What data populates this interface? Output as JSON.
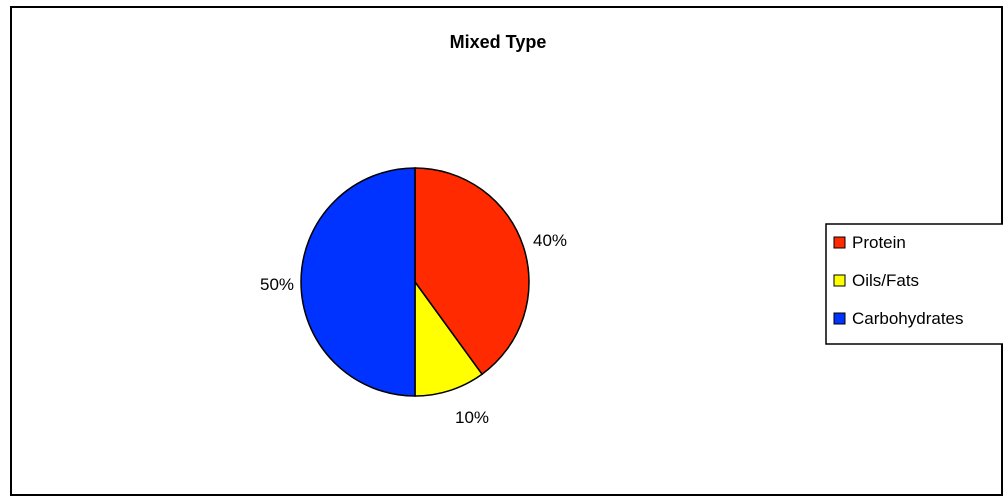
{
  "chart_data": {
    "type": "pie",
    "title": "Mixed Type",
    "categories": [
      "Protein",
      "Oils/Fats",
      "Carbohydrates"
    ],
    "values": [
      40,
      10,
      50
    ],
    "labels": [
      "40%",
      "10%",
      "50%"
    ],
    "colors": [
      "#ff2a00",
      "#ffff00",
      "#0033ff"
    ],
    "legend_position": "right"
  }
}
